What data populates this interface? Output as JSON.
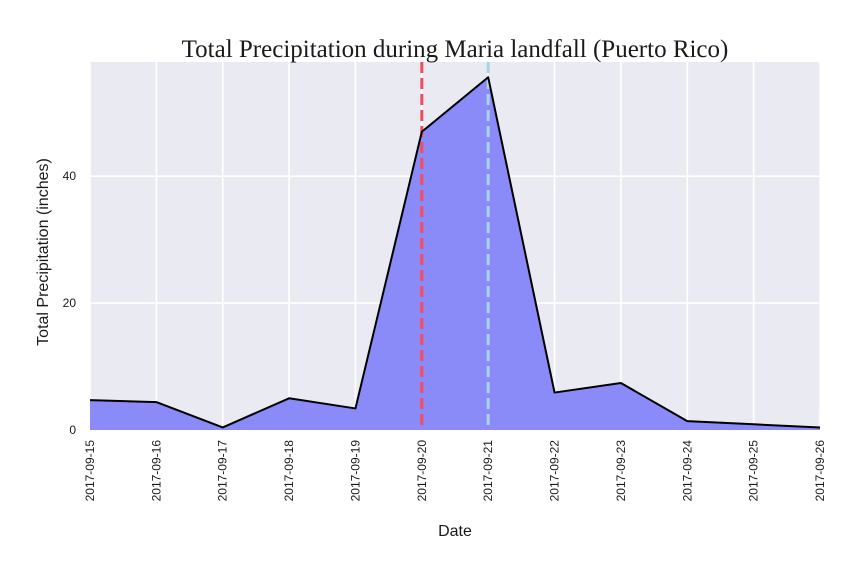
{
  "chart_data": {
    "type": "area",
    "title": "Total Precipitation during Maria landfall (Puerto Rico)",
    "xlabel": "Date",
    "ylabel": "Total Precipitation (inches)",
    "x": [
      "2017-09-15",
      "2017-09-16",
      "2017-09-17",
      "2017-09-18",
      "2017-09-19",
      "2017-09-20",
      "2017-09-21",
      "2017-09-22",
      "2017-09-23",
      "2017-09-24",
      "2017-09-25",
      "2017-09-26"
    ],
    "values": [
      4.7,
      4.4,
      0.4,
      5.0,
      3.4,
      47.0,
      55.6,
      5.9,
      7.4,
      1.4,
      0.9,
      0.4
    ],
    "ylim": [
      0,
      58
    ],
    "yticks": [
      0,
      20,
      40
    ],
    "grid": true,
    "background": "#eaeaf2",
    "fill_color": "#8a8af8",
    "line_color": "#000000",
    "markers": [
      {
        "x": "2017-09-20",
        "color": "#f24e59",
        "style": "dashed"
      },
      {
        "x": "2017-09-21",
        "color": "#a8d4e6",
        "style": "dashed"
      }
    ]
  }
}
